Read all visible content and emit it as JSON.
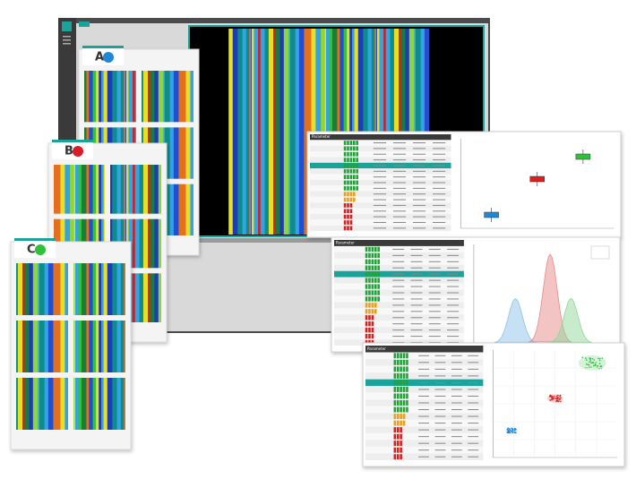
{
  "cards": [
    {
      "label": "A"
    },
    {
      "label": "B"
    },
    {
      "label": "C"
    }
  ],
  "tables": {
    "header": "Parameter"
  }
}
